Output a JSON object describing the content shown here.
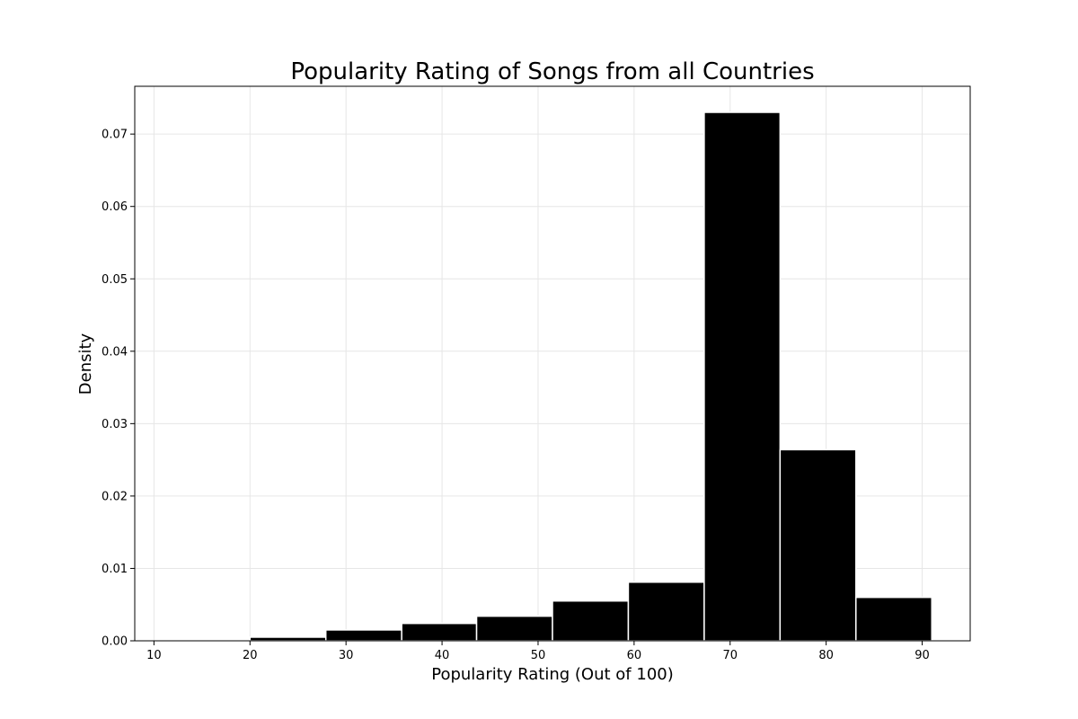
{
  "chart_data": {
    "type": "bar",
    "title": "Popularity Rating of Songs from all Countries",
    "xlabel": "Popularity Rating (Out of 100)",
    "ylabel": "Density",
    "xlim": [
      8,
      95
    ],
    "ylim": [
      0,
      0.0766
    ],
    "x_ticks": [
      10,
      20,
      30,
      40,
      50,
      60,
      70,
      80,
      90
    ],
    "x_tick_labels": [
      "10",
      "20",
      "30",
      "40",
      "50",
      "60",
      "70",
      "80",
      "90"
    ],
    "y_ticks": [
      0.0,
      0.01,
      0.02,
      0.03,
      0.04,
      0.05,
      0.06,
      0.07
    ],
    "y_tick_labels": [
      "0.00",
      "0.01",
      "0.02",
      "0.03",
      "0.04",
      "0.05",
      "0.06",
      "0.07"
    ],
    "grid": true,
    "bar_color": "#000000",
    "bar_edge_color": "#ffffff",
    "bins": [
      {
        "start": 12.1,
        "end": 20.0,
        "value": 0.0
      },
      {
        "start": 20.0,
        "end": 27.9,
        "value": 0.0005
      },
      {
        "start": 27.9,
        "end": 35.8,
        "value": 0.0015
      },
      {
        "start": 35.8,
        "end": 43.6,
        "value": 0.0024
      },
      {
        "start": 43.6,
        "end": 51.5,
        "value": 0.0034
      },
      {
        "start": 51.5,
        "end": 59.4,
        "value": 0.0055
      },
      {
        "start": 59.4,
        "end": 67.3,
        "value": 0.0081
      },
      {
        "start": 67.3,
        "end": 75.2,
        "value": 0.073
      },
      {
        "start": 75.2,
        "end": 83.1,
        "value": 0.0264
      },
      {
        "start": 83.1,
        "end": 91.0,
        "value": 0.006
      }
    ]
  }
}
